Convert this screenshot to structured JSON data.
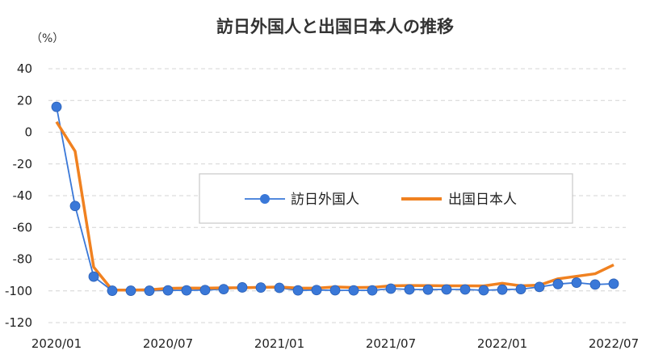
{
  "chart_data": {
    "type": "line",
    "title": "訪日外国人と出国日本人の推移",
    "unit_label": "（%）",
    "ylim": [
      -120,
      40
    ],
    "y_ticks": [
      40,
      20,
      0,
      -20,
      -40,
      -60,
      -80,
      -100,
      -120
    ],
    "x_tick_labels": [
      "2020/01",
      "2020/07",
      "2021/01",
      "2021/07",
      "2022/01",
      "2022/07"
    ],
    "x": [
      "2020/01",
      "2020/02",
      "2020/03",
      "2020/04",
      "2020/05",
      "2020/06",
      "2020/07",
      "2020/08",
      "2020/09",
      "2020/10",
      "2020/11",
      "2020/12",
      "2021/01",
      "2021/02",
      "2021/03",
      "2021/04",
      "2021/05",
      "2021/06",
      "2021/07",
      "2021/08",
      "2021/09",
      "2021/10",
      "2021/11",
      "2021/12",
      "2022/01",
      "2022/02",
      "2022/03",
      "2022/04",
      "2022/05",
      "2022/06",
      "2022/07"
    ],
    "grid": true,
    "legend_position": "center",
    "series": [
      {
        "name": "訪日外国人",
        "color": "#3a78d8",
        "marker": "circle",
        "values": [
          16,
          -46.5,
          -91,
          -99.9,
          -99.9,
          -99.9,
          -99.7,
          -99.7,
          -99.5,
          -98.9,
          -97.8,
          -97.9,
          -98.1,
          -99.7,
          -99.5,
          -99.6,
          -99.7,
          -99.7,
          -98.6,
          -99.1,
          -99.2,
          -99.1,
          -99.1,
          -99.6,
          -99.2,
          -98.9,
          -97.5,
          -95.7,
          -94.8,
          -96,
          -95.5
        ]
      },
      {
        "name": "出国日本人",
        "color": "#f08120",
        "marker": "none",
        "values": [
          6.5,
          -12,
          -85,
          -99.5,
          -99.5,
          -99.3,
          -98.4,
          -98.2,
          -98.3,
          -98.1,
          -98,
          -97.8,
          -97.6,
          -98.2,
          -98.3,
          -97.5,
          -97.9,
          -97.8,
          -96.8,
          -96.6,
          -96.7,
          -96.8,
          -96.8,
          -96.9,
          -95.2,
          -96.8,
          -96.4,
          -92.4,
          -90.8,
          -89.2,
          -83.6
        ]
      }
    ]
  }
}
